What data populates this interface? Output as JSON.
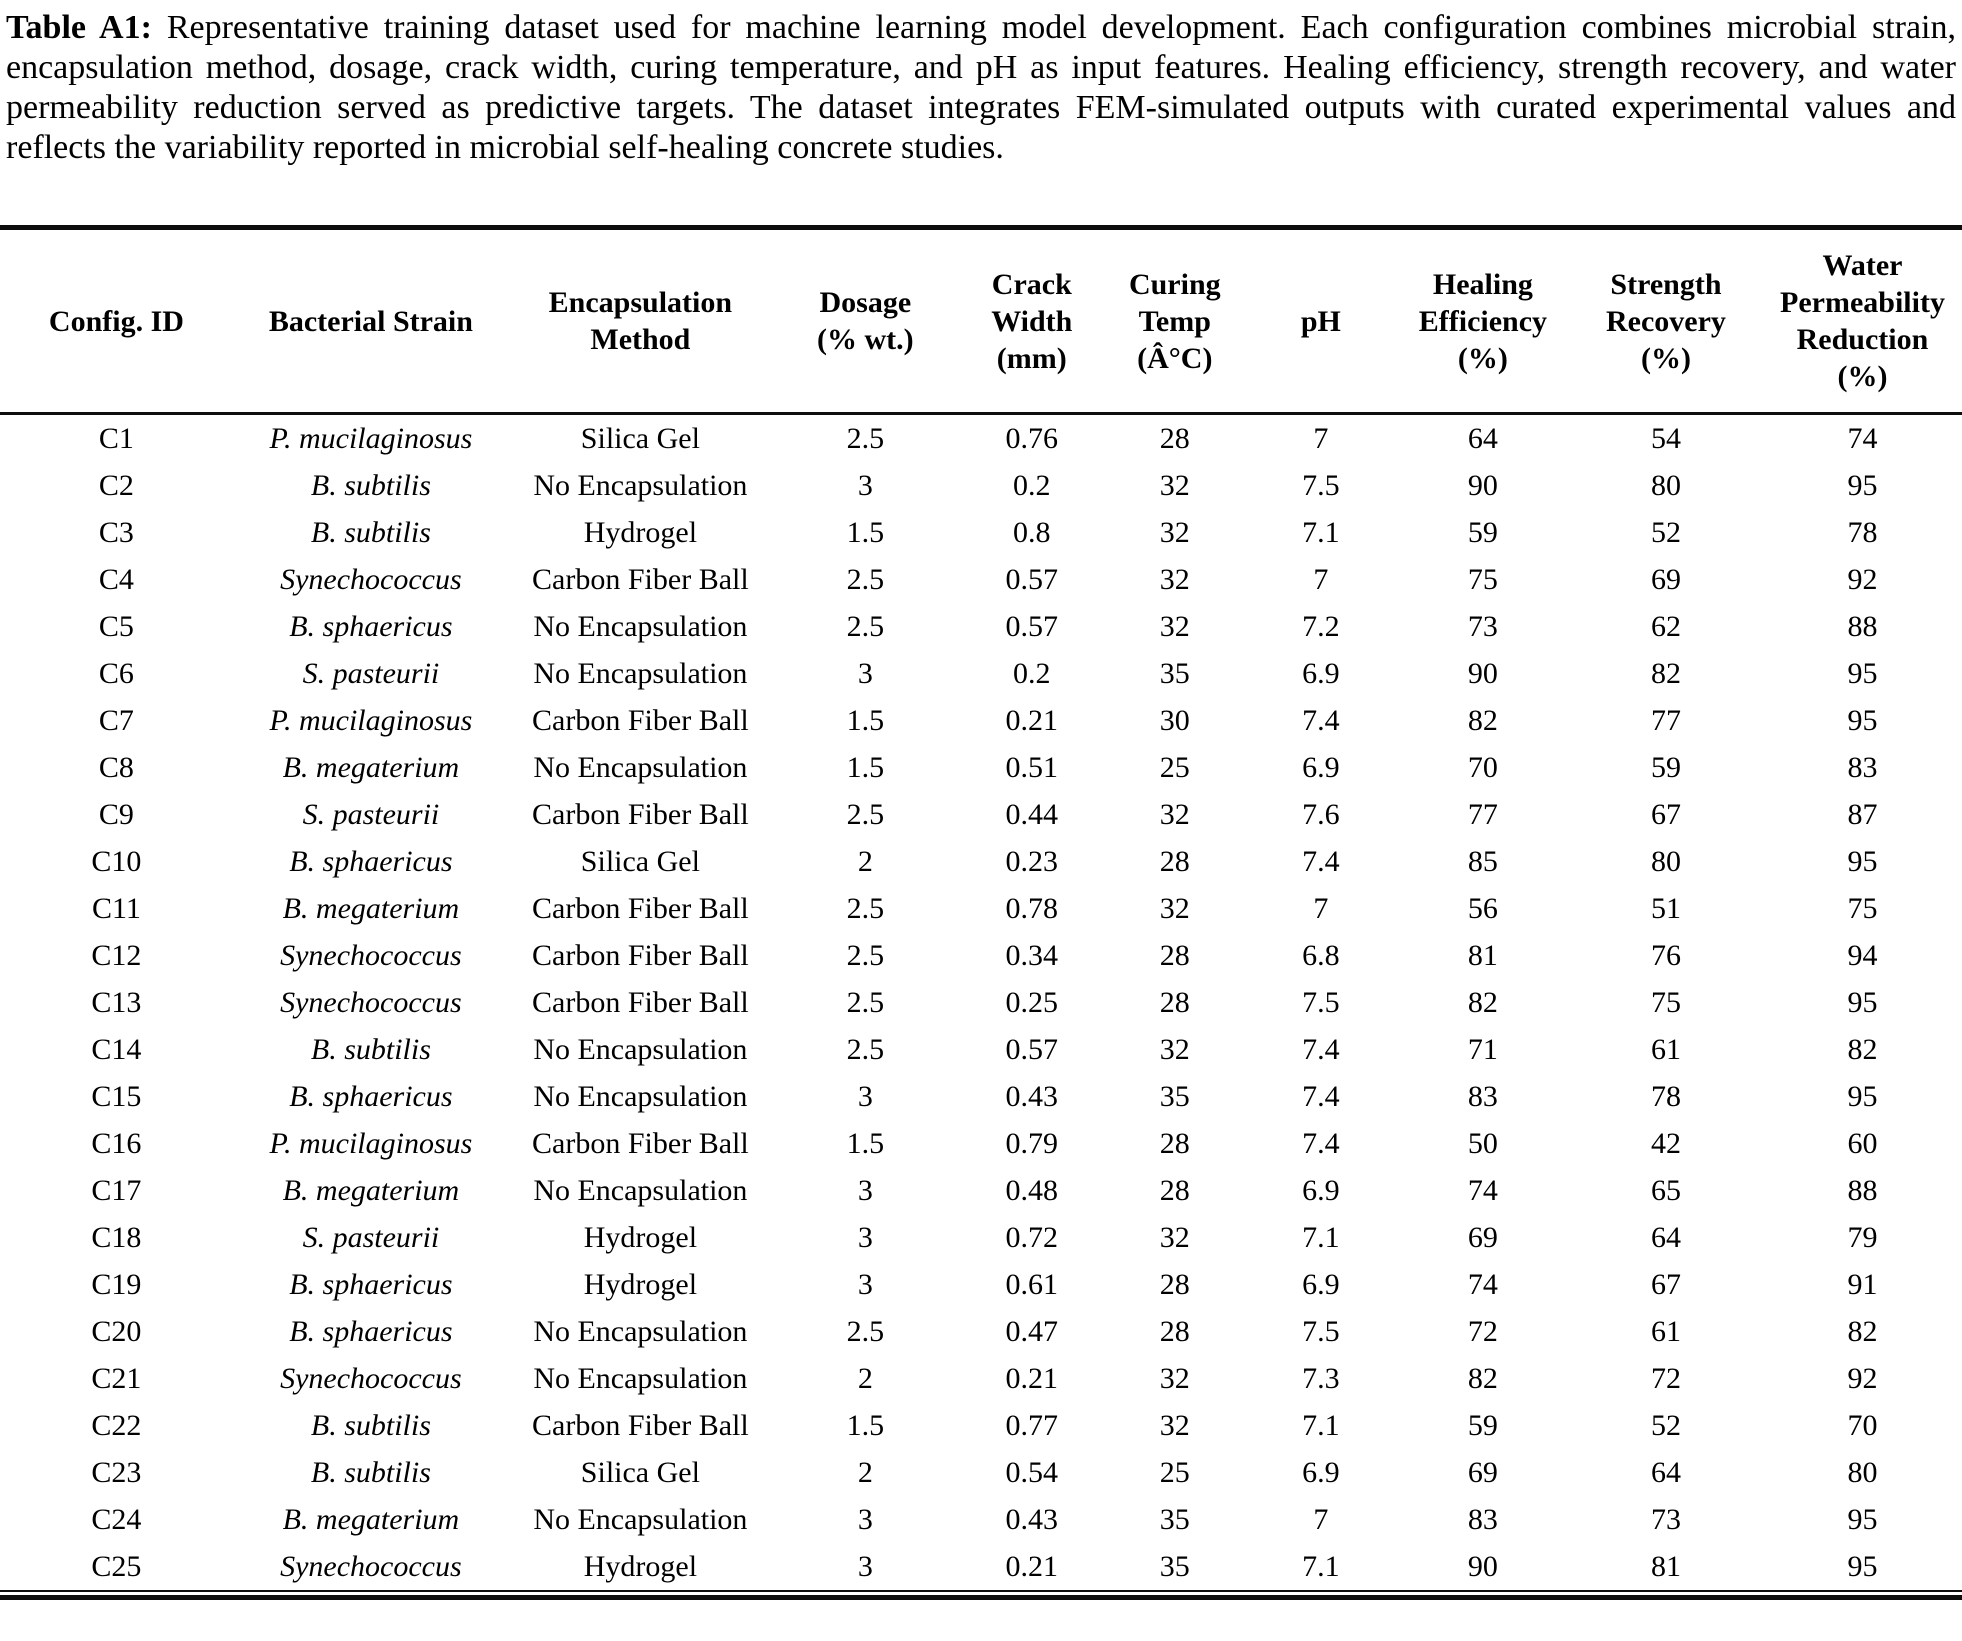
{
  "caption": {
    "label": "Table A1:",
    "text": "Representative training dataset used for machine learning model development. Each configuration combines microbial strain, encapsulation method, dosage, crack width, curing temperature, and pH as input features. Healing efficiency, strength recovery, and water permeability reduction served as predictive targets. The dataset integrates FEM-simulated outputs with curated experimental values and reflects the variability reported in microbial self-healing concrete studies."
  },
  "table": {
    "headers": [
      "Config. ID",
      "Bacterial Strain",
      "Encapsulation\nMethod",
      "Dosage\n(% wt.)",
      "Crack\nWidth\n(mm)",
      "Curing\nTemp\n(Â°C)",
      "pH",
      "Healing\nEfficiency\n(%)",
      "Strength\nRecovery\n(%)",
      "Water\nPermeability\nReduction\n(%)"
    ],
    "rows": [
      [
        "C1",
        "P. mucilaginosus",
        "Silica Gel",
        "2.5",
        "0.76",
        "28",
        "7",
        "64",
        "54",
        "74"
      ],
      [
        "C2",
        "B. subtilis",
        "No Encapsulation",
        "3",
        "0.2",
        "32",
        "7.5",
        "90",
        "80",
        "95"
      ],
      [
        "C3",
        "B. subtilis",
        "Hydrogel",
        "1.5",
        "0.8",
        "32",
        "7.1",
        "59",
        "52",
        "78"
      ],
      [
        "C4",
        "Synechococcus",
        "Carbon Fiber Ball",
        "2.5",
        "0.57",
        "32",
        "7",
        "75",
        "69",
        "92"
      ],
      [
        "C5",
        "B. sphaericus",
        "No Encapsulation",
        "2.5",
        "0.57",
        "32",
        "7.2",
        "73",
        "62",
        "88"
      ],
      [
        "C6",
        "S. pasteurii",
        "No Encapsulation",
        "3",
        "0.2",
        "35",
        "6.9",
        "90",
        "82",
        "95"
      ],
      [
        "C7",
        "P. mucilaginosus",
        "Carbon Fiber Ball",
        "1.5",
        "0.21",
        "30",
        "7.4",
        "82",
        "77",
        "95"
      ],
      [
        "C8",
        "B. megaterium",
        "No Encapsulation",
        "1.5",
        "0.51",
        "25",
        "6.9",
        "70",
        "59",
        "83"
      ],
      [
        "C9",
        "S. pasteurii",
        "Carbon Fiber Ball",
        "2.5",
        "0.44",
        "32",
        "7.6",
        "77",
        "67",
        "87"
      ],
      [
        "C10",
        "B. sphaericus",
        "Silica Gel",
        "2",
        "0.23",
        "28",
        "7.4",
        "85",
        "80",
        "95"
      ],
      [
        "C11",
        "B. megaterium",
        "Carbon Fiber Ball",
        "2.5",
        "0.78",
        "32",
        "7",
        "56",
        "51",
        "75"
      ],
      [
        "C12",
        "Synechococcus",
        "Carbon Fiber Ball",
        "2.5",
        "0.34",
        "28",
        "6.8",
        "81",
        "76",
        "94"
      ],
      [
        "C13",
        "Synechococcus",
        "Carbon Fiber Ball",
        "2.5",
        "0.25",
        "28",
        "7.5",
        "82",
        "75",
        "95"
      ],
      [
        "C14",
        "B. subtilis",
        "No Encapsulation",
        "2.5",
        "0.57",
        "32",
        "7.4",
        "71",
        "61",
        "82"
      ],
      [
        "C15",
        "B. sphaericus",
        "No Encapsulation",
        "3",
        "0.43",
        "35",
        "7.4",
        "83",
        "78",
        "95"
      ],
      [
        "C16",
        "P. mucilaginosus",
        "Carbon Fiber Ball",
        "1.5",
        "0.79",
        "28",
        "7.4",
        "50",
        "42",
        "60"
      ],
      [
        "C17",
        "B. megaterium",
        "No Encapsulation",
        "3",
        "0.48",
        "28",
        "6.9",
        "74",
        "65",
        "88"
      ],
      [
        "C18",
        "S. pasteurii",
        "Hydrogel",
        "3",
        "0.72",
        "32",
        "7.1",
        "69",
        "64",
        "79"
      ],
      [
        "C19",
        "B. sphaericus",
        "Hydrogel",
        "3",
        "0.61",
        "28",
        "6.9",
        "74",
        "67",
        "91"
      ],
      [
        "C20",
        "B. sphaericus",
        "No Encapsulation",
        "2.5",
        "0.47",
        "28",
        "7.5",
        "72",
        "61",
        "82"
      ],
      [
        "C21",
        "Synechococcus",
        "No Encapsulation",
        "2",
        "0.21",
        "32",
        "7.3",
        "82",
        "72",
        "92"
      ],
      [
        "C22",
        "B. subtilis",
        "Carbon Fiber Ball",
        "1.5",
        "0.77",
        "32",
        "7.1",
        "59",
        "52",
        "70"
      ],
      [
        "C23",
        "B. subtilis",
        "Silica Gel",
        "2",
        "0.54",
        "25",
        "6.9",
        "69",
        "64",
        "80"
      ],
      [
        "C24",
        "B. megaterium",
        "No Encapsulation",
        "3",
        "0.43",
        "35",
        "7",
        "83",
        "73",
        "95"
      ],
      [
        "C25",
        "Synechococcus",
        "Hydrogel",
        "3",
        "0.21",
        "35",
        "7.1",
        "90",
        "81",
        "95"
      ]
    ]
  },
  "colors": {
    "text": "#000000",
    "background": "#ffffff",
    "rule": "#0d0d0d"
  }
}
